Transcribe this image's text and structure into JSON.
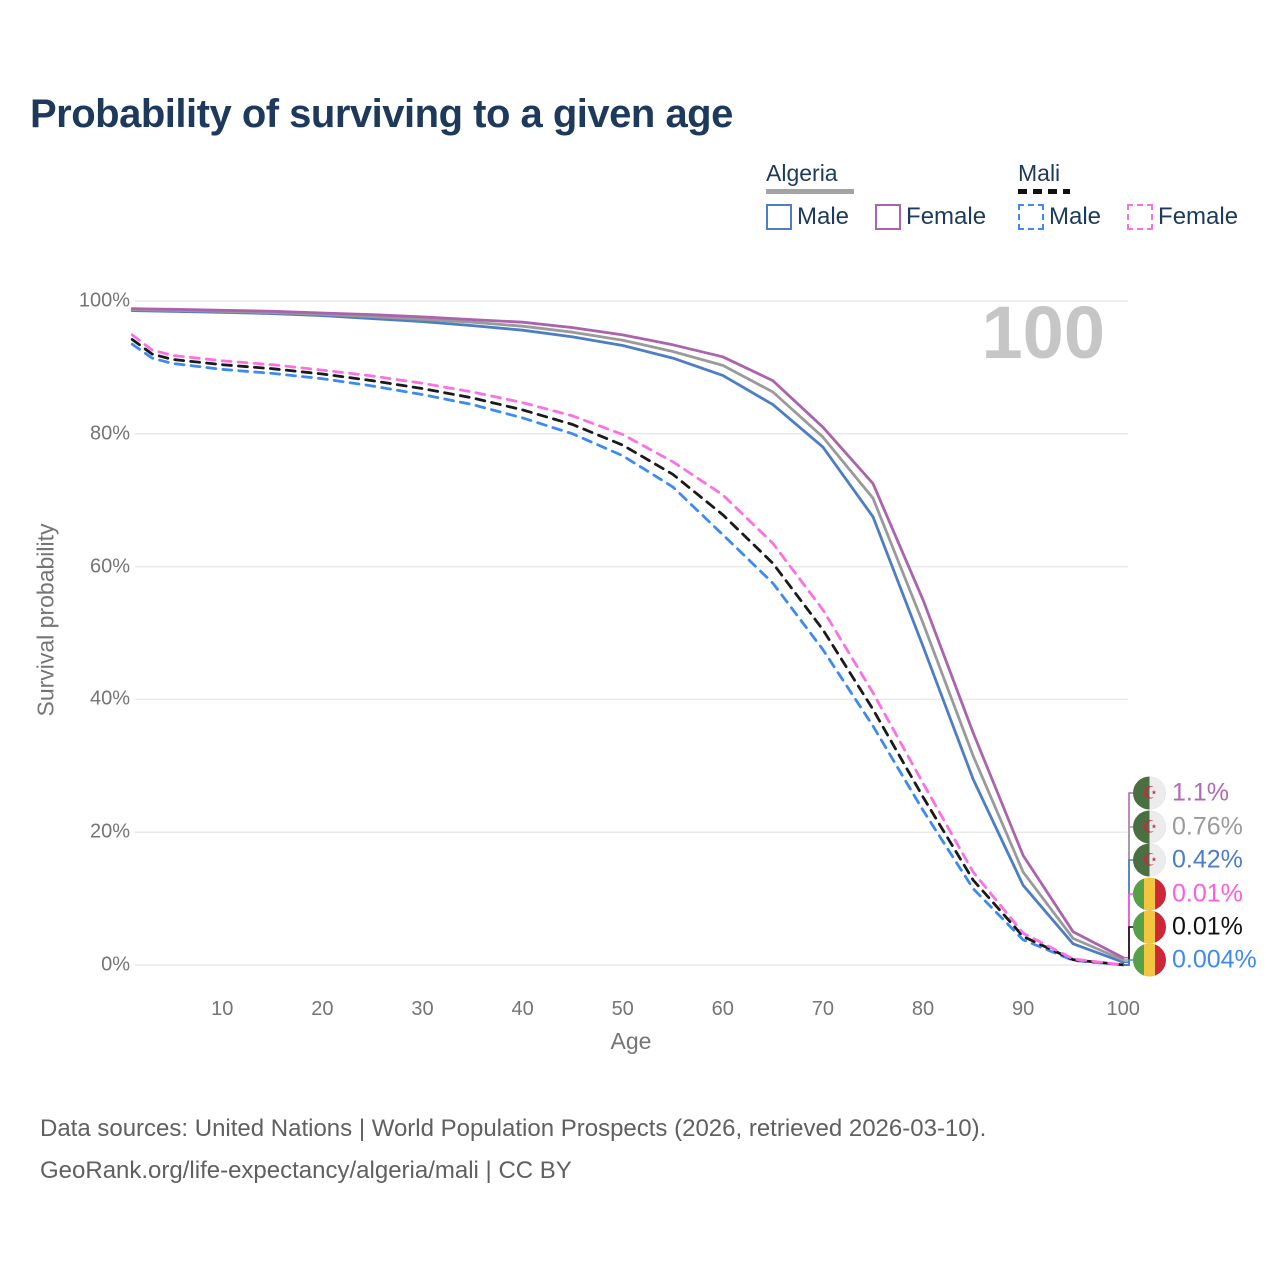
{
  "title": "Probability of surviving to a given age",
  "age_indicator": "100",
  "legend": {
    "groups": [
      {
        "country": "Algeria",
        "line_style": "solid",
        "items": [
          {
            "label": "Male",
            "color": "#4d7ec3",
            "dashed": false
          },
          {
            "label": "Female",
            "color": "#ab63ae",
            "dashed": false
          }
        ]
      },
      {
        "country": "Mali",
        "line_style": "dashed",
        "items": [
          {
            "label": "Male",
            "color": "#3d8bf2",
            "dashed": true
          },
          {
            "label": "Female",
            "color": "#fb71e3",
            "dashed": true
          }
        ]
      }
    ]
  },
  "axes": {
    "y_title": "Survival probability",
    "x_title": "Age",
    "y_ticks": [
      {
        "label": "100%",
        "value": 100
      },
      {
        "label": "80%",
        "value": 80
      },
      {
        "label": "60%",
        "value": 60
      },
      {
        "label": "40%",
        "value": 40
      },
      {
        "label": "20%",
        "value": 20
      },
      {
        "label": "0%",
        "value": 0
      }
    ],
    "x_ticks": [
      10,
      20,
      30,
      40,
      50,
      60,
      70,
      80,
      90,
      100
    ]
  },
  "chart_data": {
    "type": "line",
    "title": "Probability of surviving to a given age",
    "xlabel": "Age",
    "ylabel": "Survival probability",
    "xlim": [
      0,
      100
    ],
    "ylim": [
      0,
      100
    ],
    "grid": "horizontal-only",
    "legend_position": "top-right",
    "x": [
      1,
      3,
      5,
      10,
      15,
      20,
      25,
      30,
      35,
      40,
      45,
      50,
      55,
      60,
      65,
      70,
      75,
      80,
      85,
      90,
      95,
      100
    ],
    "series": [
      {
        "name": "Algeria Male",
        "country": "Algeria",
        "sex": "Male",
        "color": "#4d7ec3",
        "dashed": false,
        "end_label": "0.42%",
        "values": [
          98.55,
          98.5,
          98.45,
          98.3,
          98.1,
          97.8,
          97.35,
          96.9,
          96.3,
          95.6,
          94.6,
          93.3,
          91.4,
          88.8,
          84.4,
          78.0,
          67.5,
          48.0,
          28.0,
          12.0,
          3.2,
          0.42
        ]
      },
      {
        "name": "Algeria Both sexes",
        "country": "Algeria",
        "sex": "Both",
        "color": "#9a9a9a",
        "dashed": false,
        "end_label": "0.76%",
        "values": [
          98.7,
          98.65,
          98.6,
          98.45,
          98.25,
          98.0,
          97.65,
          97.25,
          96.8,
          96.2,
          95.3,
          94.1,
          92.4,
          90.3,
          86.3,
          79.5,
          70.3,
          51.5,
          31.5,
          14.0,
          4.0,
          0.76
        ]
      },
      {
        "name": "Algeria Female",
        "country": "Algeria",
        "sex": "Female",
        "color": "#ab63ae",
        "dashed": false,
        "end_label": "1.1%",
        "values": [
          98.85,
          98.8,
          98.75,
          98.6,
          98.45,
          98.2,
          97.95,
          97.6,
          97.2,
          96.8,
          96.0,
          94.9,
          93.4,
          91.6,
          88.0,
          81.0,
          72.5,
          55.0,
          35.0,
          16.5,
          5.0,
          1.1
        ]
      },
      {
        "name": "Mali Male",
        "country": "Mali",
        "sex": "Male",
        "color": "#3d8bf2",
        "dashed": true,
        "end_label": "0.004%",
        "values": [
          93.5,
          91.4,
          90.6,
          89.7,
          89.1,
          88.3,
          87.2,
          85.9,
          84.4,
          82.4,
          80.0,
          76.7,
          72.0,
          64.8,
          57.5,
          47.5,
          36.0,
          23.3,
          11.5,
          3.8,
          0.7,
          0.004
        ]
      },
      {
        "name": "Mali Both sexes",
        "country": "Mali",
        "sex": "Both",
        "color": "#1a1a1a",
        "dashed": true,
        "end_label": "0.01%",
        "values": [
          94.2,
          92.0,
          91.2,
          90.4,
          89.8,
          89.0,
          88.0,
          86.8,
          85.4,
          83.6,
          81.4,
          78.3,
          73.9,
          67.8,
          60.5,
          50.5,
          38.5,
          25.3,
          12.8,
          4.3,
          0.8,
          0.01
        ]
      },
      {
        "name": "Mali Female",
        "country": "Mali",
        "sex": "Female",
        "color": "#fb71e3",
        "dashed": true,
        "end_label": "0.01%",
        "values": [
          94.9,
          92.6,
          91.8,
          91.0,
          90.4,
          89.6,
          88.7,
          87.6,
          86.3,
          84.7,
          82.7,
          79.9,
          75.8,
          70.8,
          63.5,
          53.5,
          41.0,
          27.4,
          14.0,
          4.8,
          0.9,
          0.01
        ]
      }
    ]
  },
  "end_labels": [
    {
      "text": "1.1%",
      "color": "#b06ab4",
      "flag": "algeria",
      "series": "Algeria Female"
    },
    {
      "text": "0.76%",
      "color": "#9b9b9b",
      "flag": "algeria",
      "series": "Algeria Both sexes"
    },
    {
      "text": "0.42%",
      "color": "#4d7ec3",
      "flag": "algeria",
      "series": "Algeria Male"
    },
    {
      "text": "0.01%",
      "color": "#ff5ce0",
      "flag": "mali",
      "series": "Mali Female"
    },
    {
      "text": "0.01%",
      "color": "#111111",
      "flag": "mali",
      "series": "Mali Both sexes"
    },
    {
      "text": "0.004%",
      "color": "#3d8bf2",
      "flag": "mali",
      "series": "Mali Male"
    }
  ],
  "footer": {
    "line1": "Data sources: United Nations | World Population Prospects (2026, retrieved 2026-03-10).",
    "line2": "GeoRank.org/life-expectancy/algeria/mali | CC BY"
  },
  "colors": {
    "title_text": "#1d3a5c",
    "axis_text": "#757575",
    "gridline": "#e9e9e9",
    "age_indicator": "#c6c6c6",
    "footer_text": "#606060"
  }
}
